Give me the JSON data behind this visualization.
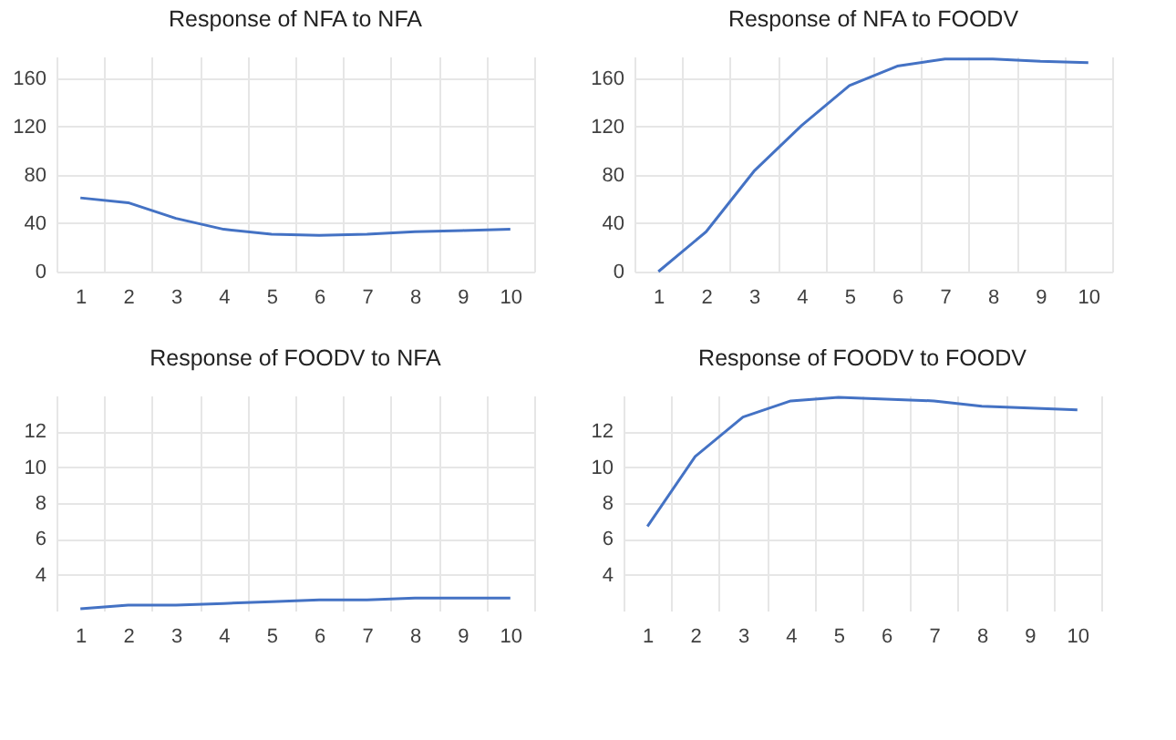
{
  "chart_data": [
    {
      "type": "line",
      "title": "Response of NFA to NFA",
      "categories": [
        "1",
        "2",
        "3",
        "4",
        "5",
        "6",
        "7",
        "8",
        "9",
        "10"
      ],
      "series": [
        {
          "color": "#4472c4",
          "values": [
            61,
            57,
            44,
            35,
            31,
            30,
            31,
            33,
            34,
            35
          ]
        }
      ],
      "ylim": [
        0,
        178
      ],
      "yticks": [
        0,
        40,
        80,
        120,
        160
      ],
      "grid": true
    },
    {
      "type": "line",
      "title": "Response of NFA to FOODV",
      "categories": [
        "1",
        "2",
        "3",
        "4",
        "5",
        "6",
        "7",
        "8",
        "9",
        "10"
      ],
      "series": [
        {
          "color": "#4472c4",
          "values": [
            0,
            33,
            83,
            121,
            154,
            170,
            176,
            176,
            174,
            173
          ]
        }
      ],
      "ylim": [
        0,
        178
      ],
      "yticks": [
        0,
        40,
        80,
        120,
        160
      ],
      "grid": true
    },
    {
      "type": "line",
      "title": "Response of FOODV to NFA",
      "categories": [
        "1",
        "2",
        "3",
        "4",
        "5",
        "6",
        "7",
        "8",
        "9",
        "10"
      ],
      "series": [
        {
          "color": "#4472c4",
          "values": [
            2.1,
            2.3,
            2.3,
            2.4,
            2.5,
            2.6,
            2.6,
            2.7,
            2.7,
            2.7
          ]
        }
      ],
      "ylim": [
        2,
        14
      ],
      "yticks": [
        4,
        6,
        8,
        10,
        12
      ],
      "grid": true
    },
    {
      "type": "line",
      "title": "Response of FOODV to FOODV",
      "categories": [
        "1",
        "2",
        "3",
        "4",
        "5",
        "6",
        "7",
        "8",
        "9",
        "10"
      ],
      "series": [
        {
          "color": "#4472c4",
          "values": [
            6.7,
            10.6,
            12.8,
            13.7,
            13.9,
            13.8,
            13.7,
            13.4,
            13.3,
            13.2
          ]
        }
      ],
      "ylim": [
        2,
        14
      ],
      "yticks": [
        4,
        6,
        8,
        10,
        12
      ],
      "grid": true
    }
  ]
}
